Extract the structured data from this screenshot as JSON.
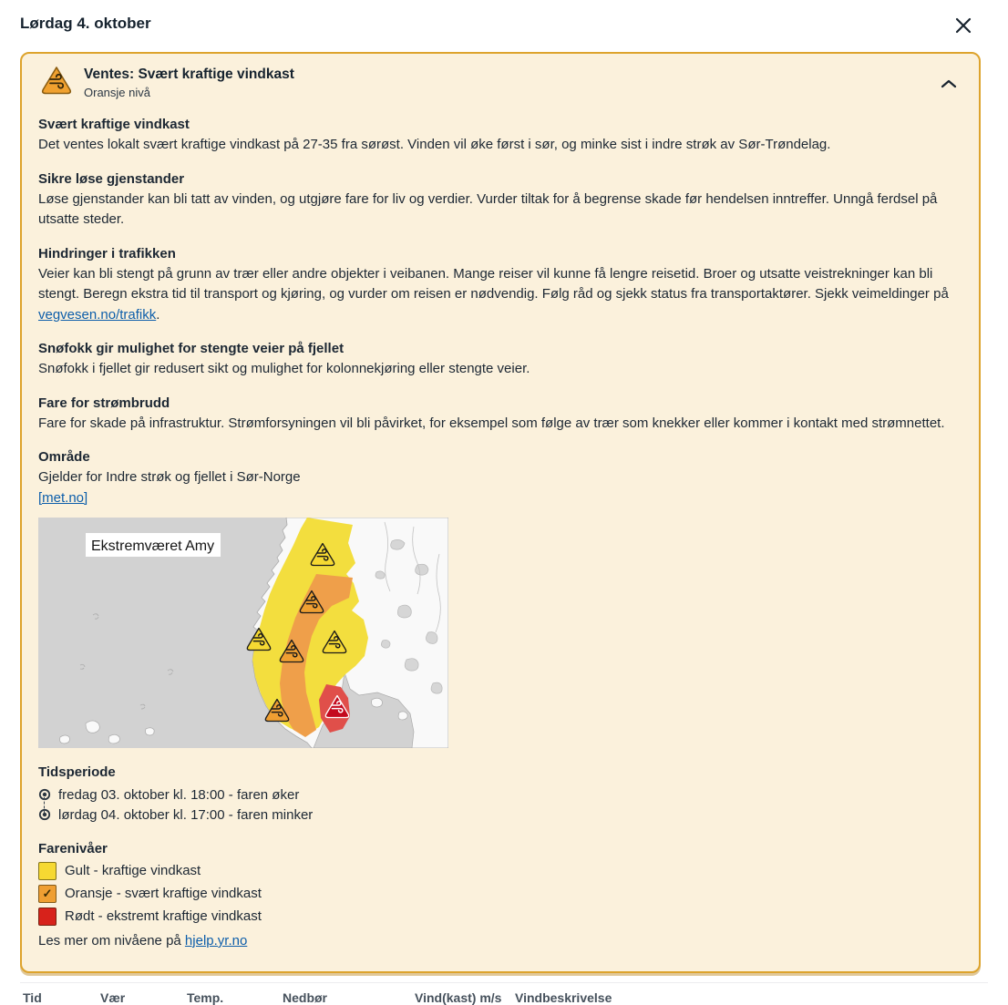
{
  "page": {
    "title": "Lørdag 4. oktober"
  },
  "warning": {
    "title": "Ventes: Svært kraftige vindkast",
    "level": "Oransje nivå",
    "sections": [
      {
        "heading": "Svært kraftige vindkast",
        "segments": [
          {
            "text": "Det ventes lokalt svært kraftige vindkast på 27-35 fra sørøst. Vinden vil øke først i sør, og minke sist i indre strøk av Sør-Trøndelag."
          }
        ]
      },
      {
        "heading": "Sikre løse gjenstander",
        "segments": [
          {
            "text": "Løse gjenstander kan bli tatt av vinden, og utgjøre fare for liv og verdier. Vurder tiltak for å begrense skade før hendelsen inntreffer. Unngå ferdsel på utsatte steder."
          }
        ]
      },
      {
        "heading": "Hindringer i trafikken",
        "segments": [
          {
            "text": "Veier kan bli stengt på grunn av trær eller andre objekter i veibanen. Mange reiser vil kunne få lengre reisetid. Broer og utsatte veistrekninger kan bli stengt. Beregn ekstra tid til transport og kjøring, og vurder om reisen er nødvendig. Følg råd og sjekk status fra transportaktører. Sjekk veimeldinger på "
          },
          {
            "link": "vegvesen.no/trafikk"
          },
          {
            "text": "."
          }
        ]
      },
      {
        "heading": "Snøfokk gir mulighet for stengte veier på fjellet",
        "segments": [
          {
            "text": "Snøfokk i fjellet gir redusert sikt og mulighet for kolonnekjøring eller stengte veier."
          }
        ]
      },
      {
        "heading": "Fare for strømbrudd",
        "segments": [
          {
            "text": "Fare for skade på infrastruktur. Strømforsyningen vil bli påvirket, for eksempel som følge av trær som knekker eller kommer i kontakt med strømnettet."
          }
        ]
      }
    ],
    "area": {
      "heading": "Område",
      "text": "Gjelder for Indre strøk og fjellet i Sør-Norge",
      "source_link": "[met.no]"
    },
    "map": {
      "label": "Ekstremværet Amy"
    },
    "time_period": {
      "heading": "Tidsperiode",
      "events": [
        "fredag 03. oktober kl. 18:00 - faren øker",
        "lørdag 04. oktober kl. 17:00 - faren minker"
      ]
    },
    "levels": {
      "heading": "Farenivåer",
      "items": [
        {
          "label": "Gult - kraftige vindkast",
          "color": "#f6d932",
          "checked": false
        },
        {
          "label": "Oransje - svært kraftige vindkast",
          "color": "#ef9f32",
          "checked": true
        },
        {
          "label": "Rødt - ekstremt kraftige vindkast",
          "color": "#d7221b",
          "checked": false
        }
      ],
      "more_prefix": "Les mer om nivåene på ",
      "more_link": "hjelp.yr.no"
    }
  },
  "forecast_table": {
    "headers": [
      "Tid",
      "Vær",
      "Temp.",
      "Nedbør",
      "Vind(kast) m/s",
      "Vindbeskrivelse"
    ]
  },
  "colors": {
    "card_background": "#fbf1dc",
    "card_border": "#dda32c",
    "link_blue": "#0d5eaa",
    "yellow_level": "#f6d932",
    "orange_level": "#ef9f32",
    "red_level": "#d7221b"
  }
}
